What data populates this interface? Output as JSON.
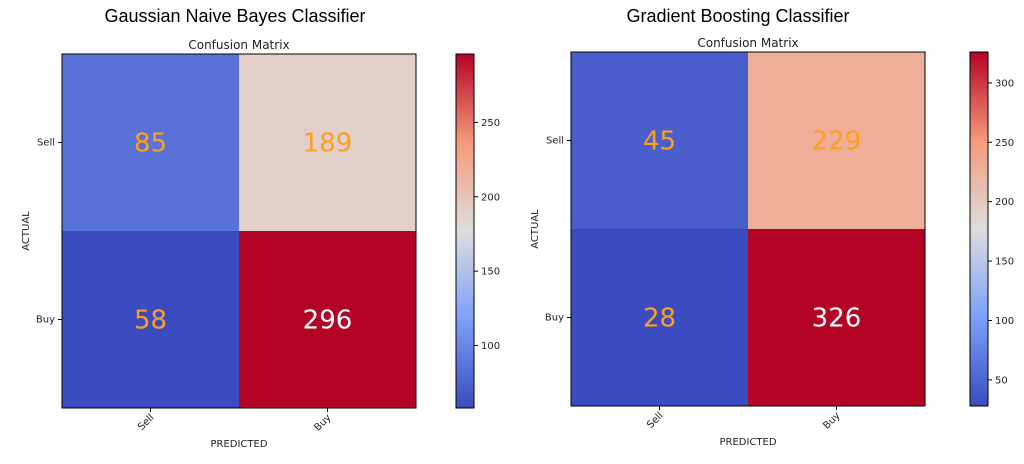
{
  "figure": {
    "left_title": "Gaussian Naive Bayes Classifier",
    "right_title": "Gradient Boosting Classifier"
  },
  "colors": {
    "cell_text_dark": "#ff9f1c",
    "cell_text_light": "#ffffff",
    "colormap": "coolwarm"
  },
  "chart_data": [
    {
      "type": "heatmap",
      "title": "Confusion Matrix",
      "xlabel": "PREDICTED",
      "ylabel": "ACTUAL",
      "x_categories": [
        "Sell",
        "Buy"
      ],
      "y_categories": [
        "Sell",
        "Buy"
      ],
      "values": [
        [
          85,
          189
        ],
        [
          58,
          296
        ]
      ],
      "colorbar": {
        "range": [
          58,
          296
        ],
        "ticks": [
          100,
          150,
          200,
          250
        ]
      }
    },
    {
      "type": "heatmap",
      "title": "Confusion Matrix",
      "xlabel": "PREDICTED",
      "ylabel": "ACTUAL",
      "x_categories": [
        "Sell",
        "Buy"
      ],
      "y_categories": [
        "Sell",
        "Buy"
      ],
      "values": [
        [
          45,
          229
        ],
        [
          28,
          326
        ]
      ],
      "colorbar": {
        "range": [
          28,
          326
        ],
        "ticks": [
          50,
          100,
          150,
          200,
          250,
          300
        ]
      }
    }
  ]
}
